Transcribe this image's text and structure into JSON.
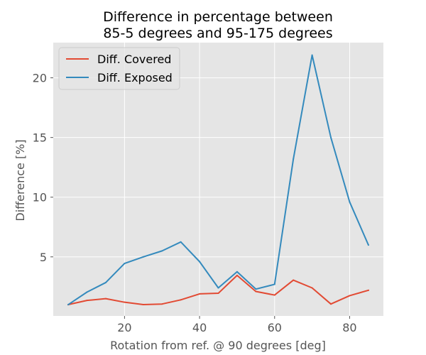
{
  "chart_data": {
    "type": "line",
    "title_line1": "Difference in percentage between",
    "title_line2": "85-5 degrees and 95-175 degrees",
    "xlabel": "Rotation from ref. @ 90 degrees [deg]",
    "ylabel": "Difference [%]",
    "xlim": [
      1.0,
      89.0
    ],
    "ylim": [
      0.05,
      22.95
    ],
    "xticks": [
      20,
      40,
      60,
      80
    ],
    "yticks": [
      5,
      10,
      15,
      20
    ],
    "grid": true,
    "legend_position": "top-left",
    "background": "#E5E5E5",
    "x": [
      5,
      10,
      15,
      20,
      25,
      30,
      35,
      40,
      45,
      50,
      55,
      60,
      65,
      70,
      75,
      80,
      85
    ],
    "series": [
      {
        "name": "Diff. Covered",
        "color": "#E24A33",
        "values": [
          1.0,
          1.35,
          1.5,
          1.2,
          1.0,
          1.05,
          1.4,
          1.9,
          1.95,
          3.45,
          2.1,
          1.8,
          3.05,
          2.4,
          1.05,
          1.75,
          2.2
        ]
      },
      {
        "name": "Diff. Exposed",
        "color": "#348ABD",
        "values": [
          1.0,
          2.05,
          2.85,
          4.45,
          5.0,
          5.5,
          6.25,
          4.6,
          2.4,
          3.75,
          2.3,
          2.7,
          13.2,
          21.9,
          15.0,
          9.6,
          6.0
        ]
      }
    ]
  }
}
